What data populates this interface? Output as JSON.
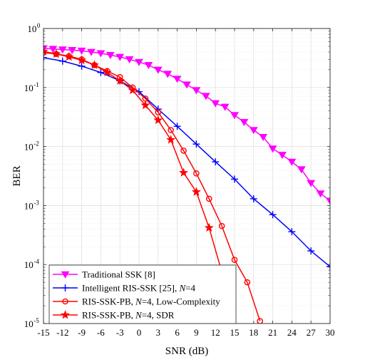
{
  "chart_data": {
    "type": "line",
    "xscale": "linear",
    "yscale": "log",
    "xlim": [
      -15,
      30
    ],
    "ylim": [
      1e-05,
      1
    ],
    "xlabel": "SNR (dB)",
    "ylabel": "BER",
    "grid": true,
    "legend_position": "bottom-left",
    "x_ticks": [
      -15,
      -12,
      -9,
      -6,
      -3,
      0,
      3,
      6,
      9,
      12,
      15,
      18,
      21,
      24,
      27,
      30
    ],
    "y_ticks": [
      {
        "value": 1e-05,
        "base": "10",
        "exp": "-5"
      },
      {
        "value": 0.0001,
        "base": "10",
        "exp": "-4"
      },
      {
        "value": 0.001,
        "base": "10",
        "exp": "-3"
      },
      {
        "value": 0.01,
        "base": "10",
        "exp": "-2"
      },
      {
        "value": 0.1,
        "base": "10",
        "exp": "-1"
      },
      {
        "value": 1,
        "base": "10",
        "exp": "0"
      }
    ],
    "series": [
      {
        "name": "Traditional SSK [8]",
        "color": "#ff00ff",
        "marker": "triangle-down",
        "x": [
          -15,
          -13.5,
          -12,
          -10.5,
          -9,
          -7.5,
          -6,
          -4.5,
          -3,
          -1.5,
          0,
          1.5,
          3,
          4.5,
          6,
          7.5,
          9,
          10.5,
          12,
          13.5,
          15,
          16.5,
          18,
          19.5,
          21,
          22.5,
          24,
          25.5,
          27,
          28.5,
          30
        ],
        "y": [
          0.46,
          0.45,
          0.44,
          0.43,
          0.42,
          0.4,
          0.38,
          0.355,
          0.33,
          0.3,
          0.27,
          0.24,
          0.2,
          0.17,
          0.14,
          0.112,
          0.09,
          0.072,
          0.054,
          0.047,
          0.034,
          0.026,
          0.019,
          0.0145,
          0.0092,
          0.0072,
          0.0055,
          0.0041,
          0.0024,
          0.0016,
          0.0012
        ]
      },
      {
        "name": "Intelligent RIS-SSK [25], N=4",
        "legend_parts": [
          "Intelligent RIS-SSK [25], ",
          "N",
          "=4"
        ],
        "color": "#0000ff",
        "marker": "plus",
        "x": [
          -15,
          -12,
          -9,
          -6,
          -3,
          0,
          3,
          6,
          9,
          12,
          15,
          18,
          21,
          24,
          27,
          30
        ],
        "y": [
          0.32,
          0.28,
          0.23,
          0.18,
          0.13,
          0.085,
          0.043,
          0.022,
          0.011,
          0.0055,
          0.0028,
          0.0013,
          0.0007,
          0.00036,
          0.00017,
          9.2e-05
        ]
      },
      {
        "name": "RIS-SSK-PB, N=4, Low-Complexity",
        "legend_parts": [
          "RIS-SSK-PB, ",
          "N",
          "=4, Low-Complexity"
        ],
        "color": "#ff0000",
        "marker": "circle",
        "x": [
          -15,
          -13,
          -11,
          -9,
          -7,
          -5,
          -3,
          -1,
          1,
          3,
          5,
          7,
          9,
          11,
          13,
          15,
          17,
          19
        ],
        "y": [
          0.39,
          0.37,
          0.34,
          0.3,
          0.24,
          0.19,
          0.15,
          0.1,
          0.065,
          0.038,
          0.019,
          0.0085,
          0.0035,
          0.0013,
          0.00045,
          0.00012,
          5e-05,
          1.1e-05
        ]
      },
      {
        "name": "RIS-SSK-PB, N=4, SDR",
        "legend_parts": [
          "RIS-SSK-PB, ",
          "N",
          "=4, SDR"
        ],
        "color": "#ff0000",
        "marker": "star",
        "x": [
          -15,
          -13,
          -11,
          -9,
          -7,
          -5,
          -3,
          -1,
          1,
          3,
          5,
          7,
          9,
          11,
          13,
          15
        ],
        "y": [
          0.41,
          0.37,
          0.33,
          0.29,
          0.24,
          0.18,
          0.13,
          0.09,
          0.05,
          0.028,
          0.013,
          0.0036,
          0.0017,
          0.00042,
          7.5e-05,
          9.5e-06
        ]
      }
    ]
  }
}
